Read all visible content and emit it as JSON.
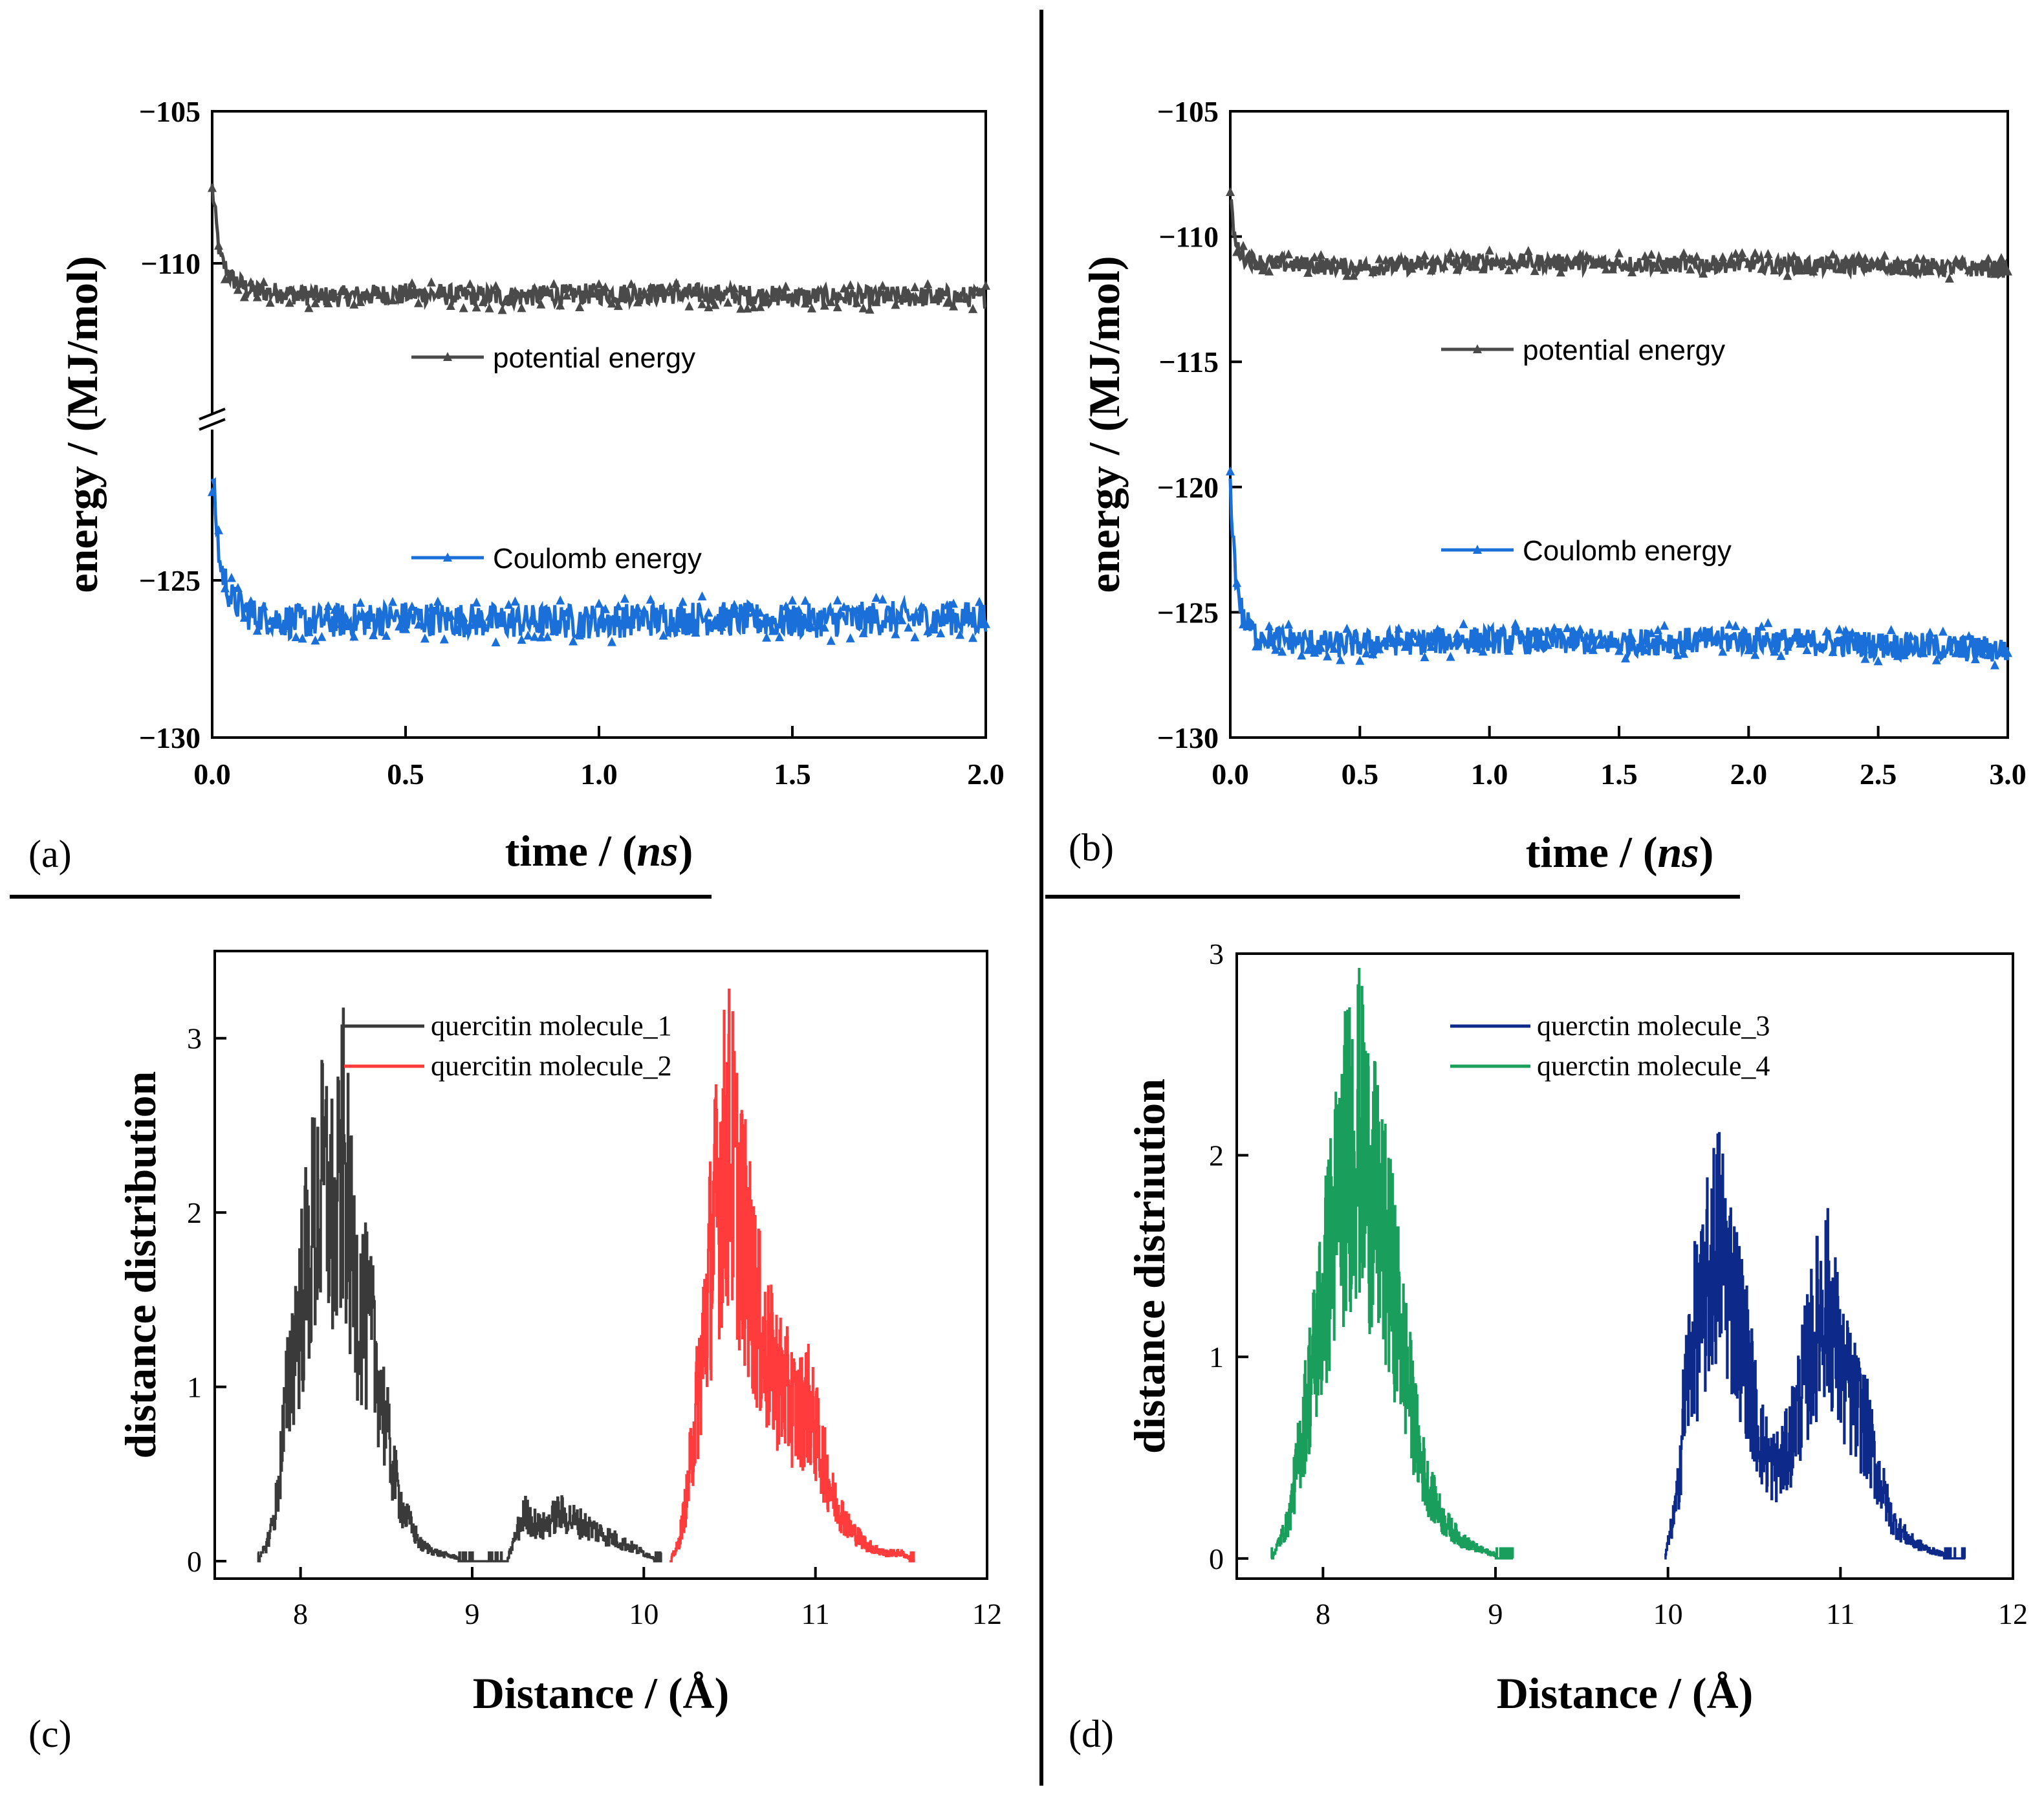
{
  "chart_data": [
    {
      "panel": "(a)",
      "type": "line",
      "xlabel_main": "time / (",
      "xlabel_unit": "ns",
      "xlabel_close": ")",
      "ylabel": "energy / (MJ/mol)",
      "xlim": [
        0,
        2
      ],
      "x_ticks": [
        "0.0",
        "0.5",
        "1.0",
        "1.5",
        "2.0"
      ],
      "y_ticks": [
        "−105",
        "−110",
        "−125",
        "−130"
      ],
      "y_axis_break": true,
      "series": [
        {
          "name": "potential energy",
          "color": "#4a4a4a",
          "x": [
            0,
            0.02,
            0.05,
            0.1,
            0.2,
            0.3,
            0.5,
            0.75,
            1.0,
            1.25,
            1.5,
            1.75,
            2.0
          ],
          "y": [
            -107.5,
            -109.8,
            -110.5,
            -110.9,
            -111.0,
            -111.1,
            -111.0,
            -111.1,
            -111.0,
            -111.0,
            -111.1,
            -111.1,
            -111.1
          ]
        },
        {
          "name": "Coulomb energy",
          "color": "#1a6fd8",
          "x": [
            0,
            0.02,
            0.05,
            0.1,
            0.2,
            0.3,
            0.5,
            0.75,
            1.0,
            1.25,
            1.5,
            1.75,
            2.0
          ],
          "y": [
            -121.5,
            -124.5,
            -125.6,
            -126.1,
            -126.3,
            -126.3,
            -126.2,
            -126.3,
            -126.3,
            -126.2,
            -126.3,
            -126.2,
            -126.2
          ]
        }
      ]
    },
    {
      "panel": "(b)",
      "type": "line",
      "xlabel_main": "time / (",
      "xlabel_unit": "ns",
      "xlabel_close": ")",
      "ylabel": "energy / (MJ/mol)",
      "xlim": [
        0,
        3
      ],
      "ylim": [
        -130,
        -105
      ],
      "x_ticks": [
        "0.0",
        "0.5",
        "1.0",
        "1.5",
        "2.0",
        "2.5",
        "3.0"
      ],
      "y_ticks": [
        "−105",
        "−110",
        "−115",
        "−120",
        "−125",
        "−130"
      ],
      "series": [
        {
          "name": "potential energy",
          "color": "#4a4a4a",
          "x": [
            0,
            0.02,
            0.05,
            0.1,
            0.2,
            0.4,
            0.6,
            1.0,
            1.5,
            2.0,
            2.5,
            3.0
          ],
          "y": [
            -108.5,
            -110.3,
            -110.8,
            -111.0,
            -111.1,
            -111.2,
            -111.2,
            -111.0,
            -111.1,
            -111.1,
            -111.2,
            -111.3
          ]
        },
        {
          "name": "Coulomb energy",
          "color": "#1a6fd8",
          "x": [
            0,
            0.02,
            0.05,
            0.1,
            0.2,
            0.4,
            0.6,
            1.0,
            1.5,
            2.0,
            2.5,
            3.0
          ],
          "y": [
            -120.0,
            -123.5,
            -125.3,
            -125.9,
            -126.1,
            -126.3,
            -126.2,
            -126.1,
            -126.2,
            -126.1,
            -126.3,
            -126.5
          ]
        }
      ]
    },
    {
      "panel": "(c)",
      "type": "line",
      "xlabel": "Distance / (Å)",
      "ylabel": "distance distribution",
      "xlim": [
        7.5,
        12
      ],
      "ylim": [
        -0.1,
        3.5
      ],
      "x_ticks": [
        "8",
        "9",
        "10",
        "11",
        "12"
      ],
      "y_ticks": [
        "0",
        "1",
        "2",
        "3"
      ],
      "series": [
        {
          "name": "quercitin molecule_1",
          "color": "#3a3a3a",
          "x": [
            7.75,
            7.8,
            7.85,
            7.9,
            7.95,
            8.0,
            8.05,
            8.1,
            8.15,
            8.2,
            8.25,
            8.3,
            8.35,
            8.4,
            8.45,
            8.5,
            8.55,
            8.6,
            8.7,
            8.8,
            9.0,
            9.2,
            9.3,
            9.4,
            9.5,
            9.6,
            9.7,
            9.8,
            9.9,
            10.0,
            10.1
          ],
          "y": [
            0.0,
            0.1,
            0.3,
            0.8,
            1.3,
            1.6,
            1.9,
            2.2,
            2.3,
            2.0,
            2.5,
            1.8,
            1.6,
            1.4,
            1.2,
            0.8,
            0.5,
            0.3,
            0.1,
            0.05,
            0.0,
            0.0,
            0.3,
            0.2,
            0.3,
            0.25,
            0.2,
            0.15,
            0.1,
            0.05,
            0.0
          ]
        },
        {
          "name": "quercitin molecule_2",
          "color": "#ff3b3b",
          "x": [
            10.15,
            10.2,
            10.25,
            10.3,
            10.35,
            10.4,
            10.45,
            10.5,
            10.55,
            10.6,
            10.65,
            10.7,
            10.75,
            10.8,
            10.85,
            10.9,
            10.95,
            11.0,
            11.05,
            11.1,
            11.2,
            11.3,
            11.4,
            11.5,
            11.58
          ],
          "y": [
            0.0,
            0.1,
            0.4,
            0.9,
            1.4,
            2.0,
            2.4,
            2.6,
            2.2,
            1.9,
            1.6,
            1.3,
            1.2,
            1.1,
            1.0,
            0.9,
            1.0,
            0.8,
            0.6,
            0.4,
            0.2,
            0.1,
            0.05,
            0.05,
            0.0
          ]
        }
      ]
    },
    {
      "panel": "(d)",
      "type": "line",
      "xlabel": "Distance / (Å)",
      "ylabel": "distance distriıution",
      "xlim": [
        7.5,
        12
      ],
      "ylim": [
        -0.1,
        3
      ],
      "x_ticks": [
        "8",
        "9",
        "10",
        "11",
        "12"
      ],
      "y_ticks": [
        "0",
        "1",
        "2",
        "3"
      ],
      "series": [
        {
          "name": "querctin  molecule_3",
          "color": "#0d2a8a",
          "x": [
            9.98,
            10.05,
            10.1,
            10.15,
            10.2,
            10.25,
            10.3,
            10.35,
            10.4,
            10.45,
            10.5,
            10.55,
            10.6,
            10.65,
            10.7,
            10.75,
            10.8,
            10.85,
            10.9,
            10.95,
            11.0,
            11.05,
            11.1,
            11.15,
            11.2,
            11.3,
            11.4,
            11.5,
            11.6,
            11.72
          ],
          "y": [
            0.0,
            0.3,
            0.9,
            1.2,
            1.3,
            1.6,
            1.7,
            1.5,
            1.3,
            1.1,
            0.8,
            0.6,
            0.5,
            0.5,
            0.6,
            0.8,
            1.0,
            1.2,
            1.4,
            1.3,
            1.0,
            0.9,
            0.8,
            0.7,
            0.5,
            0.2,
            0.1,
            0.05,
            0.02,
            0.0
          ]
        },
        {
          "name": "querctin  molecule_4",
          "color": "#1a9e5c",
          "x": [
            7.7,
            7.8,
            7.85,
            7.9,
            7.95,
            8.0,
            8.05,
            8.1,
            8.15,
            8.2,
            8.25,
            8.3,
            8.35,
            8.4,
            8.45,
            8.5,
            8.55,
            8.6,
            8.65,
            8.7,
            8.8,
            8.9,
            9.0,
            9.1
          ],
          "y": [
            0.0,
            0.2,
            0.5,
            0.8,
            1.1,
            1.4,
            1.7,
            2.0,
            2.2,
            2.3,
            2.1,
            1.9,
            1.7,
            1.5,
            1.2,
            0.9,
            0.6,
            0.4,
            0.3,
            0.2,
            0.1,
            0.05,
            0.02,
            0.0
          ]
        }
      ]
    }
  ]
}
